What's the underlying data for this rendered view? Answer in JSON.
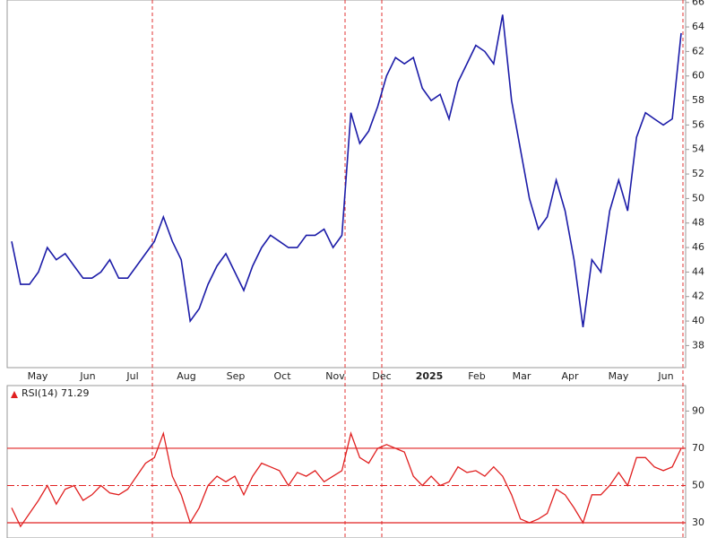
{
  "chart_data": [
    {
      "type": "line",
      "x_labels": [
        "May",
        "Jun",
        "Jul",
        "Aug",
        "Sep",
        "Oct",
        "Nov",
        "Dec",
        "2025",
        "Feb",
        "Mar",
        "Apr",
        "May",
        "Jun"
      ],
      "series": [
        {
          "color": "#1c1ca8",
          "values": [
            46.5,
            43,
            43,
            44,
            46,
            45,
            45.5,
            44.5,
            43.5,
            43.5,
            44,
            45,
            43.5,
            43.5,
            44.5,
            45.5,
            46.5,
            48.5,
            46.5,
            45,
            40,
            41,
            43,
            44.5,
            45.5,
            44,
            42.5,
            44.5,
            46,
            47,
            46.5,
            46,
            46,
            47,
            47,
            47.5,
            46,
            47,
            57,
            54.5,
            55.5,
            57.5,
            60,
            61.5,
            61,
            61.5,
            59,
            58,
            58.5,
            56.5,
            59.5,
            61,
            62.5,
            62,
            61,
            65,
            58,
            54,
            50,
            47.5,
            48.5,
            51.5,
            49,
            45,
            39.5,
            45,
            44,
            49,
            51.5,
            49,
            55,
            57,
            56.5,
            56,
            56.5,
            63.5
          ]
        }
      ],
      "ylim": [
        36.2,
        66.2
      ],
      "yticks": [
        38,
        40,
        42,
        44,
        46,
        48,
        50,
        52,
        54,
        56,
        58,
        60,
        62,
        64,
        66
      ]
    },
    {
      "type": "line",
      "title": "RSI(14) 71.29",
      "series": [
        {
          "color": "#e02020",
          "values": [
            38,
            28,
            35,
            42,
            50,
            40,
            48,
            50,
            42,
            45,
            50,
            46,
            45,
            48,
            55,
            62,
            65,
            78,
            55,
            45,
            30,
            38,
            50,
            55,
            52,
            55,
            45,
            55,
            62,
            60,
            58,
            50,
            57,
            55,
            58,
            52,
            55,
            58,
            78,
            65,
            62,
            70,
            72,
            70,
            68,
            55,
            50,
            55,
            50,
            52,
            60,
            57,
            58,
            55,
            60,
            55,
            45,
            32,
            30,
            32,
            35,
            48,
            45,
            38,
            30,
            45,
            45,
            50,
            57,
            50,
            65,
            65,
            60,
            58,
            60,
            70
          ]
        }
      ],
      "ylim": [
        21.8,
        103.7
      ],
      "yticks": [
        30,
        50,
        70,
        90
      ]
    }
  ]
}
